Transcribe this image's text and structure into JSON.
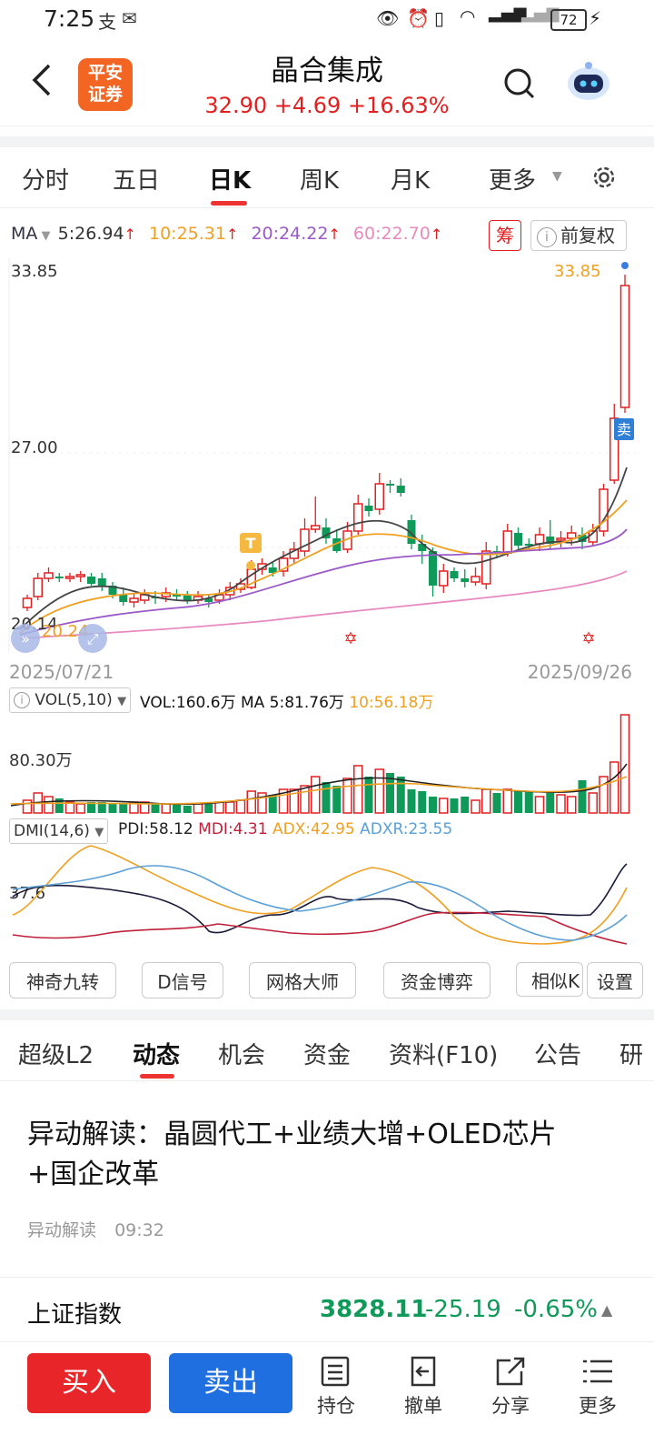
{
  "status_bar": {
    "time": "7:25",
    "battery": "72"
  },
  "header": {
    "title": "晶合集成",
    "price": "32.90",
    "change": "+4.69",
    "change_pct": "+16.63%",
    "logo_line1": "平安",
    "logo_line2": "证券"
  },
  "period_tabs": [
    "分时",
    "五日",
    "日K",
    "周K",
    "月K",
    "更多"
  ],
  "ma_row": {
    "label": "MA",
    "ma5": "5:26.94",
    "ma10": "10:25.31",
    "ma20": "20:24.22",
    "ma60": "60:22.70",
    "chip_btn": "筹",
    "adjust_btn": "前复权"
  },
  "kline": {
    "top_price": "33.85",
    "top_price_right": "33.85",
    "mid_price": "27.00",
    "low_price": "20.14",
    "low_price2": "20.24",
    "date_start": "2025/07/21",
    "date_end": "2025/09/26",
    "t_marker": "T",
    "sell_marker": "卖"
  },
  "vol_row": {
    "label": "VOL(5,10)",
    "vol": "VOL:160.6万",
    "ma5": "MA 5:81.76万",
    "ma10": "10:56.18万",
    "scale": "80.30万"
  },
  "dmi_row": {
    "label": "DMI(14,6)",
    "pdi": "PDI:58.12",
    "mdi": "MDI:4.31",
    "adx": "ADX:42.95",
    "adxr": "ADXR:23.55",
    "scale": "37.6"
  },
  "indicator_buttons": [
    "神奇九转",
    "D信号",
    "网格大师",
    "资金博弈",
    "相似K",
    "设置"
  ],
  "news_tabs": [
    "超级L2",
    "动态",
    "机会",
    "资金",
    "资料(F10)",
    "公告",
    "研"
  ],
  "news": {
    "title_line1": "异动解读：晶圆代工+业绩大增+OLED芯片",
    "title_line2": "+国企改革",
    "source": "异动解读",
    "time": "09:32"
  },
  "index_bar": {
    "name": "上证指数",
    "value": "3828.11",
    "change": "-25.19",
    "change_pct": "-0.65%"
  },
  "bottom_bar": {
    "buy": "买入",
    "sell": "卖出",
    "position": "持仓",
    "cancel": "撤单",
    "share": "分享",
    "more": "更多"
  },
  "colors": {
    "up": "#e02020",
    "down": "#0f9a5a",
    "ma5": "#333333",
    "ma10": "#f0a020",
    "ma20": "#9b59c8",
    "ma60": "#e88ac0",
    "accent_blue": "#1f6fe0"
  }
}
